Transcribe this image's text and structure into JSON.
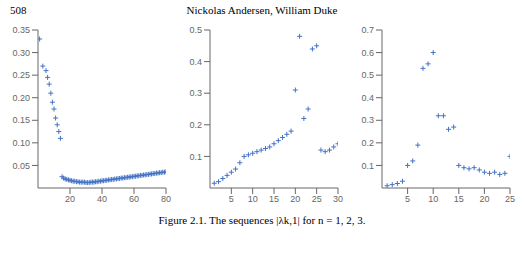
{
  "title": "Nickolas Andersen, William Duke",
  "annotations": [
    "508"
  ],
  "caption": "Figure 2.1.  The sequences |λk,1| for n = 1, 2, 3.",
  "chart_data": [
    {
      "type": "scatter",
      "color": "#4472c4",
      "marker": "+",
      "xlim": [
        0,
        80
      ],
      "ylim": [
        0,
        0.35
      ],
      "xticks": [
        20,
        40,
        60,
        80
      ],
      "yticks": [
        0.05,
        {
          "value": 0.1,
          "label": "0.10"
        },
        0.15,
        {
          "value": 0.2,
          "label": "0.20"
        },
        0.25,
        {
          "value": 0.3,
          "label": "0.30"
        },
        0.35
      ],
      "x": [
        1,
        3,
        5,
        6,
        7,
        8,
        9,
        10,
        11,
        12,
        13,
        14,
        15,
        16,
        17,
        18,
        19,
        20,
        21,
        22,
        23,
        24,
        25,
        26,
        27,
        28,
        29,
        30,
        31,
        32,
        33,
        34,
        35,
        36,
        37,
        38,
        39,
        40,
        41,
        42,
        43,
        44,
        45,
        46,
        47,
        48,
        49,
        50,
        51,
        52,
        53,
        54,
        55,
        56,
        57,
        58,
        59,
        60,
        61,
        62,
        63,
        64,
        65,
        66,
        67,
        68,
        69,
        70,
        71,
        72,
        73,
        74,
        75,
        76,
        77,
        78,
        79,
        80
      ],
      "values": [
        0.33,
        0.27,
        0.26,
        0.245,
        0.23,
        0.21,
        0.19,
        0.175,
        0.155,
        0.14,
        0.125,
        0.11,
        0.025,
        0.022,
        0.02,
        0.019,
        0.018,
        0.017,
        0.016,
        0.015,
        0.015,
        0.014,
        0.014,
        0.013,
        0.013,
        0.013,
        0.013,
        0.012,
        0.012,
        0.012,
        0.013,
        0.013,
        0.013,
        0.014,
        0.014,
        0.015,
        0.015,
        0.016,
        0.016,
        0.017,
        0.017,
        0.018,
        0.018,
        0.019,
        0.019,
        0.02,
        0.02,
        0.021,
        0.021,
        0.022,
        0.022,
        0.023,
        0.023,
        0.024,
        0.024,
        0.025,
        0.025,
        0.026,
        0.026,
        0.027,
        0.027,
        0.028,
        0.028,
        0.029,
        0.029,
        0.03,
        0.03,
        0.031,
        0.031,
        0.032,
        0.032,
        0.033,
        0.033,
        0.034,
        0.034,
        0.035,
        0.035,
        0.036
      ]
    },
    {
      "type": "scatter",
      "color": "#4472c4",
      "marker": "+",
      "xlim": [
        0,
        30
      ],
      "ylim": [
        0,
        0.5
      ],
      "xticks": [
        5,
        10,
        15,
        20,
        25,
        30
      ],
      "yticks": [
        0.1,
        0.2,
        0.3,
        0.4,
        0.5
      ],
      "x": [
        1,
        2,
        3,
        4,
        5,
        6,
        7,
        8,
        9,
        10,
        11,
        12,
        13,
        14,
        15,
        16,
        17,
        18,
        19,
        20,
        21,
        22,
        23,
        24,
        25,
        26,
        27,
        28,
        29,
        30
      ],
      "values": [
        0.015,
        0.02,
        0.03,
        0.04,
        0.05,
        0.06,
        0.08,
        0.1,
        0.105,
        0.11,
        0.115,
        0.12,
        0.125,
        0.13,
        0.14,
        0.15,
        0.16,
        0.17,
        0.18,
        0.31,
        0.48,
        0.22,
        0.25,
        0.44,
        0.45,
        0.12,
        0.115,
        0.12,
        0.13,
        0.14
      ]
    },
    {
      "type": "scatter",
      "color": "#4472c4",
      "marker": "+",
      "xlim": [
        0,
        25
      ],
      "ylim": [
        0,
        0.7
      ],
      "xticks": [
        5,
        10,
        15,
        20,
        25
      ],
      "yticks": [
        0.1,
        0.2,
        0.3,
        0.4,
        0.5,
        0.6,
        0.7
      ],
      "x": [
        1,
        2,
        3,
        4,
        5,
        6,
        7,
        8,
        9,
        10,
        11,
        12,
        13,
        14,
        15,
        16,
        17,
        18,
        19,
        20,
        21,
        22,
        23,
        24,
        25
      ],
      "values": [
        0.01,
        0.015,
        0.02,
        0.03,
        0.1,
        0.12,
        0.19,
        0.53,
        0.55,
        0.6,
        0.32,
        0.32,
        0.26,
        0.27,
        0.1,
        0.09,
        0.085,
        0.09,
        0.08,
        0.07,
        0.065,
        0.07,
        0.06,
        0.065,
        0.14
      ]
    }
  ]
}
